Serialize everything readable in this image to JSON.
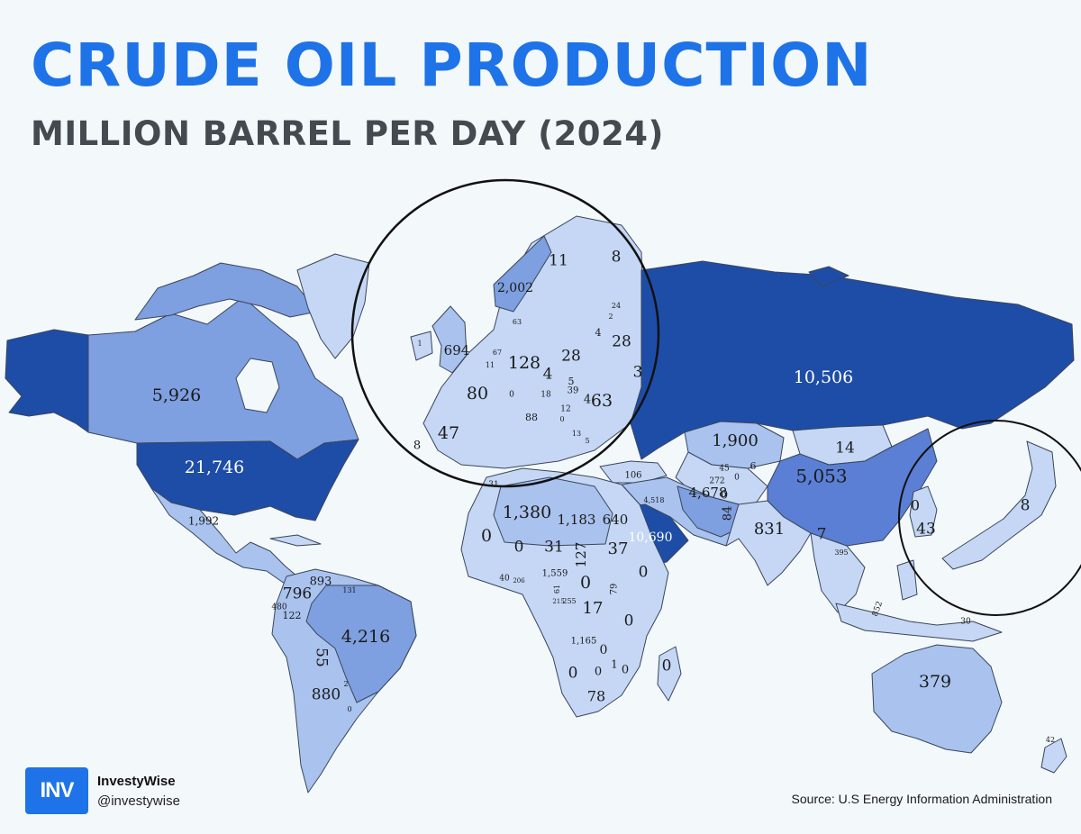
{
  "header": {
    "title": "CRUDE OIL PRODUCTION",
    "subtitle": "MILLION BARREL PER DAY (2024)"
  },
  "colors": {
    "title": "#1e73e8",
    "subtitle": "#444a4f",
    "background": "#f3f8fb",
    "level_1": "#c5d7f5",
    "level_2": "#a9c2ee",
    "level_3": "#7e9fe0",
    "level_4": "#5a7fd4",
    "level_5": "#2f5fbd",
    "level_6": "#1e4da8",
    "border": "#39465a"
  },
  "map": {
    "labels": [
      {
        "country": "Canada",
        "value": "5,926"
      },
      {
        "country": "United States",
        "value": "21,746"
      },
      {
        "country": "Mexico",
        "value": "1,992"
      },
      {
        "country": "Colombia",
        "value": "796"
      },
      {
        "country": "Venezuela",
        "value": "893"
      },
      {
        "country": "Ecuador",
        "value": "480"
      },
      {
        "country": "Peru",
        "value": "122"
      },
      {
        "country": "Guyana",
        "value": "131"
      },
      {
        "country": "Brazil",
        "value": "4,216"
      },
      {
        "country": "Bolivia",
        "value": "55"
      },
      {
        "country": "Argentina",
        "value": "880"
      },
      {
        "country": "Paraguay",
        "value": "2"
      },
      {
        "country": "Uruguay",
        "value": "0"
      },
      {
        "country": "Norway",
        "value": "2,002"
      },
      {
        "country": "Sweden",
        "value": "11"
      },
      {
        "country": "Finland",
        "value": "8"
      },
      {
        "country": "United Kingdom",
        "value": "694"
      },
      {
        "country": "Ireland",
        "value": "1"
      },
      {
        "country": "Denmark",
        "value": "63"
      },
      {
        "country": "Estonia",
        "value": "24"
      },
      {
        "country": "Latvia",
        "value": "2"
      },
      {
        "country": "Lithuania",
        "value": "4"
      },
      {
        "country": "Belarus",
        "value": "28"
      },
      {
        "country": "Netherlands",
        "value": "67"
      },
      {
        "country": "Belgium",
        "value": "11"
      },
      {
        "country": "Germany",
        "value": "128"
      },
      {
        "country": "Poland",
        "value": "28"
      },
      {
        "country": "Czechia",
        "value": "4"
      },
      {
        "country": "Ukraine",
        "value": "3"
      },
      {
        "country": "France",
        "value": "80"
      },
      {
        "country": "Switzerland",
        "value": "0"
      },
      {
        "country": "Austria",
        "value": "18"
      },
      {
        "country": "Hungary",
        "value": "39"
      },
      {
        "country": "Slovakia",
        "value": "5"
      },
      {
        "country": "Serbia",
        "value": "12"
      },
      {
        "country": "Romania",
        "value": "63"
      },
      {
        "country": "Moldova",
        "value": "4"
      },
      {
        "country": "Italy",
        "value": "88"
      },
      {
        "country": "Croatia",
        "value": "0"
      },
      {
        "country": "Bulgaria",
        "value": "5"
      },
      {
        "country": "Greece",
        "value": "13"
      },
      {
        "country": "Spain",
        "value": "47"
      },
      {
        "country": "Portugal",
        "value": "8"
      },
      {
        "country": "Russia",
        "value": "10,506"
      },
      {
        "country": "Kazakhstan",
        "value": "1,900"
      },
      {
        "country": "Mongolia",
        "value": "14"
      },
      {
        "country": "China",
        "value": "5,053"
      },
      {
        "country": "Uzbekistan",
        "value": "45"
      },
      {
        "country": "Turkmenistan",
        "value": "272"
      },
      {
        "country": "Kyrgyzstan",
        "value": "6"
      },
      {
        "country": "Tajikistan",
        "value": "0"
      },
      {
        "country": "Afghanistan",
        "value": "0"
      },
      {
        "country": "Pakistan",
        "value": "84"
      },
      {
        "country": "India",
        "value": "831"
      },
      {
        "country": "Myanmar",
        "value": "7"
      },
      {
        "country": "Thailand",
        "value": "395"
      },
      {
        "country": "Turkey",
        "value": "106"
      },
      {
        "country": "Iraq",
        "value": "4,518"
      },
      {
        "country": "Iran",
        "value": "4,678"
      },
      {
        "country": "Saudi Arabia",
        "value": "10,690"
      },
      {
        "country": "Tunisia",
        "value": "31"
      },
      {
        "country": "Algeria",
        "value": "1,380"
      },
      {
        "country": "Libya",
        "value": "1,183"
      },
      {
        "country": "Egypt",
        "value": "640"
      },
      {
        "country": "Western Sahara",
        "value": "0"
      },
      {
        "country": "Mali",
        "value": "0"
      },
      {
        "country": "Niger",
        "value": "31"
      },
      {
        "country": "Chad",
        "value": "127"
      },
      {
        "country": "Sudan",
        "value": "37"
      },
      {
        "country": "Ethiopia",
        "value": "0"
      },
      {
        "country": "Nigeria",
        "value": "1,559"
      },
      {
        "country": "Ghana",
        "value": "206"
      },
      {
        "country": "Cote d'Ivoire",
        "value": "40"
      },
      {
        "country": "Cameroon",
        "value": "61"
      },
      {
        "country": "Congo",
        "value": "255"
      },
      {
        "country": "Gabon",
        "value": "215"
      },
      {
        "country": "South Sudan",
        "value": "0"
      },
      {
        "country": "Uganda",
        "value": "79"
      },
      {
        "country": "DR Congo",
        "value": "17"
      },
      {
        "country": "Tanzania",
        "value": "0"
      },
      {
        "country": "Angola",
        "value": "1,165"
      },
      {
        "country": "Zambia",
        "value": "0"
      },
      {
        "country": "Mozambique",
        "value": "1"
      },
      {
        "country": "Namibia",
        "value": "0"
      },
      {
        "country": "Botswana",
        "value": "0"
      },
      {
        "country": "Zimbabwe",
        "value": "0"
      },
      {
        "country": "South Africa",
        "value": "78"
      },
      {
        "country": "Madagascar",
        "value": "0"
      },
      {
        "country": "Japan",
        "value": "8"
      },
      {
        "country": "South Korea",
        "value": "43"
      },
      {
        "country": "North Korea",
        "value": "0"
      },
      {
        "country": "Indonesia",
        "value": "852"
      },
      {
        "country": "Papua New Guinea",
        "value": "30"
      },
      {
        "country": "Australia",
        "value": "379"
      },
      {
        "country": "New Zealand",
        "value": "42"
      }
    ]
  },
  "brand": {
    "logo_text": "INV",
    "name": "InvestyWise",
    "handle": "@investywise"
  },
  "source": "Source: U.S Energy Information Administration"
}
